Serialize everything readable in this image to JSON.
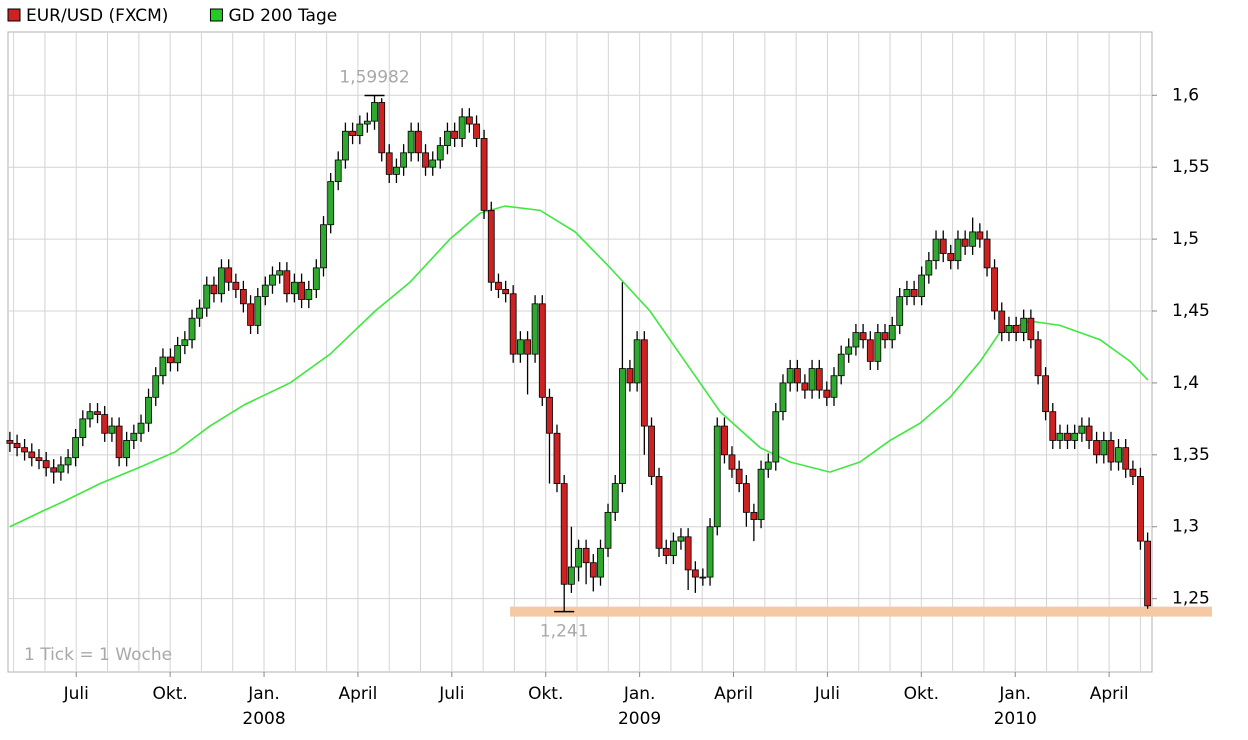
{
  "chart_data": {
    "type": "candlestick",
    "legend": "top-left",
    "grid": true,
    "xlim": [
      -8.18,
      28.37
    ],
    "ylim": [
      1.199,
      1.644
    ],
    "xgrid": [
      -8,
      -7,
      -6,
      -5,
      -4,
      -3,
      -2,
      -1,
      0,
      1,
      2,
      3,
      4,
      5,
      6,
      7,
      8,
      9,
      10,
      11,
      12,
      13,
      14,
      15,
      16,
      17,
      18,
      19,
      20,
      21,
      22,
      23,
      24,
      25,
      26,
      27,
      28
    ],
    "xticks": [
      {
        "value": -6,
        "label": "Juli"
      },
      {
        "value": -3,
        "label": "Okt."
      },
      {
        "value": 0,
        "label": "Jan."
      },
      {
        "value": 3,
        "label": "April"
      },
      {
        "value": 6,
        "label": "Juli"
      },
      {
        "value": 9,
        "label": "Okt."
      },
      {
        "value": 12,
        "label": "Jan."
      },
      {
        "value": 15,
        "label": "April"
      },
      {
        "value": 18,
        "label": "Juli"
      },
      {
        "value": 21,
        "label": "Okt."
      },
      {
        "value": 24,
        "label": "Jan."
      },
      {
        "value": 27,
        "label": "April"
      }
    ],
    "year_ticks": [
      {
        "value": 0,
        "label": "2008"
      },
      {
        "value": 12,
        "label": "2009"
      },
      {
        "value": 24,
        "label": "2010"
      }
    ],
    "yticks": [
      {
        "value": 1.25,
        "label": "1,25"
      },
      {
        "value": 1.3,
        "label": "1,3"
      },
      {
        "value": 1.35,
        "label": "1,35"
      },
      {
        "value": 1.4,
        "label": "1,4"
      },
      {
        "value": 1.45,
        "label": "1,45"
      },
      {
        "value": 1.5,
        "label": "1,5"
      },
      {
        "value": 1.55,
        "label": "1,55"
      },
      {
        "value": 1.6,
        "label": "1,6"
      }
    ],
    "note": "1 Tick = 1 Woche",
    "annotations": [
      {
        "x": 3.53,
        "value": 1.59982,
        "label": "1,59982",
        "position": "above"
      },
      {
        "x": 9.59,
        "value": 1.241,
        "label": "1,241",
        "position": "below"
      }
    ],
    "support_line": {
      "value": 1.241,
      "from_x": 7.86,
      "color": "#f5c9a4"
    },
    "series": [
      {
        "name": "EUR/USD (FXCM)",
        "type": "candlestick",
        "color": "#cc2222",
        "up_color": "#2ea82e",
        "x": [
          -8.12,
          -7.89,
          -7.65,
          -7.42,
          -7.19,
          -6.96,
          -6.72,
          -6.49,
          -6.26,
          -6.02,
          -5.79,
          -5.56,
          -5.32,
          -5.09,
          -4.86,
          -4.63,
          -4.39,
          -4.16,
          -3.93,
          -3.69,
          -3.46,
          -3.23,
          -2.99,
          -2.76,
          -2.53,
          -2.3,
          -2.06,
          -1.83,
          -1.6,
          -1.36,
          -1.13,
          -0.9,
          -0.66,
          -0.43,
          -0.2,
          0.04,
          0.27,
          0.5,
          0.73,
          0.97,
          1.2,
          1.43,
          1.67,
          1.9,
          2.13,
          2.37,
          2.6,
          2.83,
          3.06,
          3.3,
          3.53,
          3.76,
          4.0,
          4.23,
          4.46,
          4.7,
          4.93,
          5.16,
          5.39,
          5.63,
          5.86,
          6.09,
          6.33,
          6.56,
          6.79,
          7.03,
          7.26,
          7.49,
          7.72,
          7.96,
          8.19,
          8.42,
          8.66,
          8.89,
          9.12,
          9.36,
          9.59,
          9.82,
          10.05,
          10.29,
          10.52,
          10.75,
          10.99,
          11.22,
          11.45,
          11.69,
          11.92,
          12.15,
          12.38,
          12.62,
          12.85,
          13.08,
          13.32,
          13.55,
          13.78,
          14.02,
          14.25,
          14.48,
          14.71,
          14.95,
          15.18,
          15.41,
          15.65,
          15.88,
          16.11,
          16.35,
          16.58,
          16.81,
          17.04,
          17.28,
          17.51,
          17.74,
          17.98,
          18.21,
          18.44,
          18.68,
          18.91,
          19.14,
          19.37,
          19.61,
          19.84,
          20.07,
          20.31,
          20.54,
          20.77,
          21.01,
          21.24,
          21.47,
          21.7,
          21.94,
          22.17,
          22.4,
          22.64,
          22.87,
          23.1,
          23.34,
          23.57,
          23.8,
          24.03,
          24.27,
          24.5,
          24.73,
          24.97,
          25.2,
          25.43,
          25.67,
          25.9,
          26.13,
          26.36,
          26.6,
          26.83,
          27.06,
          27.3,
          27.53,
          27.76,
          28.0,
          28.23
        ],
        "open": [
          1.36,
          1.358,
          1.355,
          1.352,
          1.348,
          1.346,
          1.341,
          1.338,
          1.343,
          1.348,
          1.362,
          1.375,
          1.38,
          1.378,
          1.365,
          1.37,
          1.348,
          1.36,
          1.365,
          1.372,
          1.39,
          1.405,
          1.418,
          1.414,
          1.426,
          1.43,
          1.445,
          1.452,
          1.468,
          1.462,
          1.48,
          1.47,
          1.465,
          1.455,
          1.44,
          1.46,
          1.468,
          1.475,
          1.478,
          1.462,
          1.47,
          1.458,
          1.465,
          1.48,
          1.51,
          1.54,
          1.555,
          1.575,
          1.572,
          1.58,
          1.582,
          1.595,
          1.56,
          1.545,
          1.55,
          1.56,
          1.575,
          1.56,
          1.55,
          1.555,
          1.565,
          1.575,
          1.57,
          1.585,
          1.58,
          1.57,
          1.52,
          1.47,
          1.465,
          1.462,
          1.42,
          1.43,
          1.42,
          1.455,
          1.39,
          1.365,
          1.33,
          1.26,
          1.272,
          1.285,
          1.275,
          1.265,
          1.285,
          1.31,
          1.33,
          1.41,
          1.4,
          1.43,
          1.37,
          1.335,
          1.285,
          1.28,
          1.29,
          1.293,
          1.27,
          1.265,
          1.265,
          1.3,
          1.37,
          1.35,
          1.34,
          1.33,
          1.31,
          1.305,
          1.34,
          1.345,
          1.38,
          1.4,
          1.41,
          1.4,
          1.395,
          1.41,
          1.395,
          1.39,
          1.405,
          1.42,
          1.425,
          1.435,
          1.43,
          1.415,
          1.435,
          1.43,
          1.44,
          1.46,
          1.465,
          1.46,
          1.475,
          1.485,
          1.5,
          1.49,
          1.485,
          1.5,
          1.495,
          1.505,
          1.5,
          1.48,
          1.45,
          1.435,
          1.44,
          1.435,
          1.445,
          1.43,
          1.405,
          1.38,
          1.36,
          1.365,
          1.36,
          1.365,
          1.37,
          1.36,
          1.35,
          1.36,
          1.345,
          1.355,
          1.34,
          1.335,
          1.29
        ],
        "high": [
          1.366,
          1.364,
          1.361,
          1.358,
          1.354,
          1.352,
          1.347,
          1.349,
          1.354,
          1.368,
          1.381,
          1.386,
          1.386,
          1.384,
          1.376,
          1.376,
          1.366,
          1.371,
          1.378,
          1.396,
          1.411,
          1.424,
          1.424,
          1.432,
          1.436,
          1.451,
          1.458,
          1.474,
          1.474,
          1.486,
          1.486,
          1.476,
          1.471,
          1.461,
          1.466,
          1.474,
          1.481,
          1.484,
          1.484,
          1.476,
          1.476,
          1.471,
          1.486,
          1.516,
          1.546,
          1.561,
          1.581,
          1.581,
          1.586,
          1.588,
          1.59982,
          1.598,
          1.566,
          1.556,
          1.566,
          1.581,
          1.581,
          1.566,
          1.561,
          1.571,
          1.581,
          1.581,
          1.591,
          1.591,
          1.586,
          1.576,
          1.526,
          1.476,
          1.471,
          1.468,
          1.436,
          1.436,
          1.461,
          1.461,
          1.396,
          1.371,
          1.336,
          1.3,
          1.291,
          1.291,
          1.281,
          1.291,
          1.316,
          1.336,
          1.47,
          1.416,
          1.436,
          1.436,
          1.376,
          1.341,
          1.291,
          1.296,
          1.299,
          1.299,
          1.276,
          1.271,
          1.306,
          1.376,
          1.376,
          1.356,
          1.346,
          1.336,
          1.316,
          1.346,
          1.351,
          1.386,
          1.406,
          1.416,
          1.416,
          1.406,
          1.416,
          1.416,
          1.401,
          1.411,
          1.426,
          1.431,
          1.441,
          1.441,
          1.436,
          1.441,
          1.441,
          1.446,
          1.466,
          1.471,
          1.471,
          1.481,
          1.491,
          1.506,
          1.506,
          1.496,
          1.506,
          1.506,
          1.515,
          1.511,
          1.506,
          1.486,
          1.456,
          1.446,
          1.446,
          1.451,
          1.451,
          1.436,
          1.411,
          1.386,
          1.371,
          1.371,
          1.371,
          1.376,
          1.376,
          1.366,
          1.366,
          1.366,
          1.361,
          1.361,
          1.346,
          1.341,
          1.296
        ],
        "low": [
          1.352,
          1.349,
          1.346,
          1.342,
          1.34,
          1.335,
          1.33,
          1.332,
          1.337,
          1.342,
          1.356,
          1.369,
          1.372,
          1.359,
          1.359,
          1.342,
          1.342,
          1.354,
          1.359,
          1.366,
          1.384,
          1.399,
          1.408,
          1.408,
          1.42,
          1.424,
          1.439,
          1.446,
          1.456,
          1.456,
          1.464,
          1.459,
          1.449,
          1.434,
          1.434,
          1.454,
          1.462,
          1.469,
          1.456,
          1.456,
          1.452,
          1.452,
          1.459,
          1.474,
          1.504,
          1.534,
          1.549,
          1.566,
          1.566,
          1.574,
          1.576,
          1.554,
          1.539,
          1.539,
          1.544,
          1.554,
          1.554,
          1.544,
          1.544,
          1.549,
          1.559,
          1.564,
          1.564,
          1.574,
          1.564,
          1.514,
          1.464,
          1.459,
          1.456,
          1.414,
          1.414,
          1.392,
          1.414,
          1.384,
          1.33,
          1.324,
          1.241,
          1.254,
          1.262,
          1.26,
          1.255,
          1.259,
          1.279,
          1.304,
          1.324,
          1.394,
          1.394,
          1.35,
          1.329,
          1.279,
          1.274,
          1.274,
          1.284,
          1.256,
          1.254,
          1.259,
          1.259,
          1.294,
          1.344,
          1.334,
          1.324,
          1.3,
          1.29,
          1.299,
          1.334,
          1.339,
          1.374,
          1.394,
          1.394,
          1.389,
          1.389,
          1.389,
          1.384,
          1.384,
          1.399,
          1.414,
          1.419,
          1.424,
          1.409,
          1.409,
          1.424,
          1.424,
          1.434,
          1.454,
          1.454,
          1.454,
          1.469,
          1.479,
          1.484,
          1.479,
          1.479,
          1.489,
          1.489,
          1.494,
          1.474,
          1.444,
          1.429,
          1.429,
          1.429,
          1.429,
          1.424,
          1.399,
          1.374,
          1.354,
          1.354,
          1.354,
          1.354,
          1.359,
          1.354,
          1.344,
          1.344,
          1.339,
          1.339,
          1.334,
          1.329,
          1.284,
          1.243
        ],
        "close": [
          1.358,
          1.355,
          1.352,
          1.348,
          1.346,
          1.341,
          1.338,
          1.343,
          1.348,
          1.362,
          1.375,
          1.38,
          1.378,
          1.365,
          1.37,
          1.348,
          1.36,
          1.365,
          1.372,
          1.39,
          1.405,
          1.418,
          1.414,
          1.426,
          1.43,
          1.445,
          1.452,
          1.468,
          1.462,
          1.48,
          1.47,
          1.465,
          1.455,
          1.44,
          1.46,
          1.468,
          1.475,
          1.478,
          1.462,
          1.47,
          1.458,
          1.465,
          1.48,
          1.51,
          1.54,
          1.555,
          1.575,
          1.572,
          1.58,
          1.582,
          1.595,
          1.56,
          1.545,
          1.55,
          1.56,
          1.575,
          1.56,
          1.55,
          1.555,
          1.565,
          1.575,
          1.57,
          1.585,
          1.58,
          1.57,
          1.52,
          1.47,
          1.465,
          1.462,
          1.42,
          1.43,
          1.42,
          1.455,
          1.39,
          1.365,
          1.33,
          1.26,
          1.272,
          1.285,
          1.275,
          1.265,
          1.285,
          1.31,
          1.33,
          1.41,
          1.4,
          1.43,
          1.37,
          1.335,
          1.285,
          1.28,
          1.29,
          1.293,
          1.27,
          1.265,
          1.265,
          1.3,
          1.37,
          1.35,
          1.34,
          1.33,
          1.31,
          1.305,
          1.34,
          1.345,
          1.38,
          1.4,
          1.41,
          1.4,
          1.395,
          1.41,
          1.395,
          1.39,
          1.405,
          1.42,
          1.425,
          1.435,
          1.43,
          1.415,
          1.435,
          1.43,
          1.44,
          1.46,
          1.465,
          1.46,
          1.475,
          1.485,
          1.5,
          1.49,
          1.485,
          1.5,
          1.495,
          1.505,
          1.5,
          1.48,
          1.45,
          1.435,
          1.44,
          1.435,
          1.445,
          1.43,
          1.405,
          1.38,
          1.36,
          1.365,
          1.36,
          1.365,
          1.37,
          1.36,
          1.35,
          1.36,
          1.345,
          1.355,
          1.34,
          1.335,
          1.29,
          1.245
        ]
      },
      {
        "name": "GD 200 Tage",
        "type": "line",
        "color": "#3ee83e",
        "legend_color": "#22cc22",
        "x": [
          -8.12,
          -7.16,
          -6.36,
          -5.24,
          -4.12,
          -2.84,
          -1.73,
          -0.61,
          0.83,
          2.11,
          3.55,
          4.66,
          5.94,
          6.9,
          7.7,
          8.82,
          9.94,
          11.06,
          12.33,
          13.61,
          14.57,
          15.85,
          16.81,
          18.08,
          19.04,
          20.0,
          20.96,
          21.92,
          22.88,
          23.51,
          24.47,
          25.43,
          26.71,
          27.67,
          28.24
        ],
        "values": [
          1.3,
          1.31,
          1.318,
          1.33,
          1.34,
          1.352,
          1.37,
          1.385,
          1.4,
          1.42,
          1.45,
          1.47,
          1.5,
          1.518,
          1.523,
          1.52,
          1.505,
          1.48,
          1.45,
          1.41,
          1.38,
          1.355,
          1.345,
          1.338,
          1.345,
          1.36,
          1.372,
          1.39,
          1.415,
          1.435,
          1.443,
          1.44,
          1.43,
          1.415,
          1.402
        ]
      }
    ]
  }
}
